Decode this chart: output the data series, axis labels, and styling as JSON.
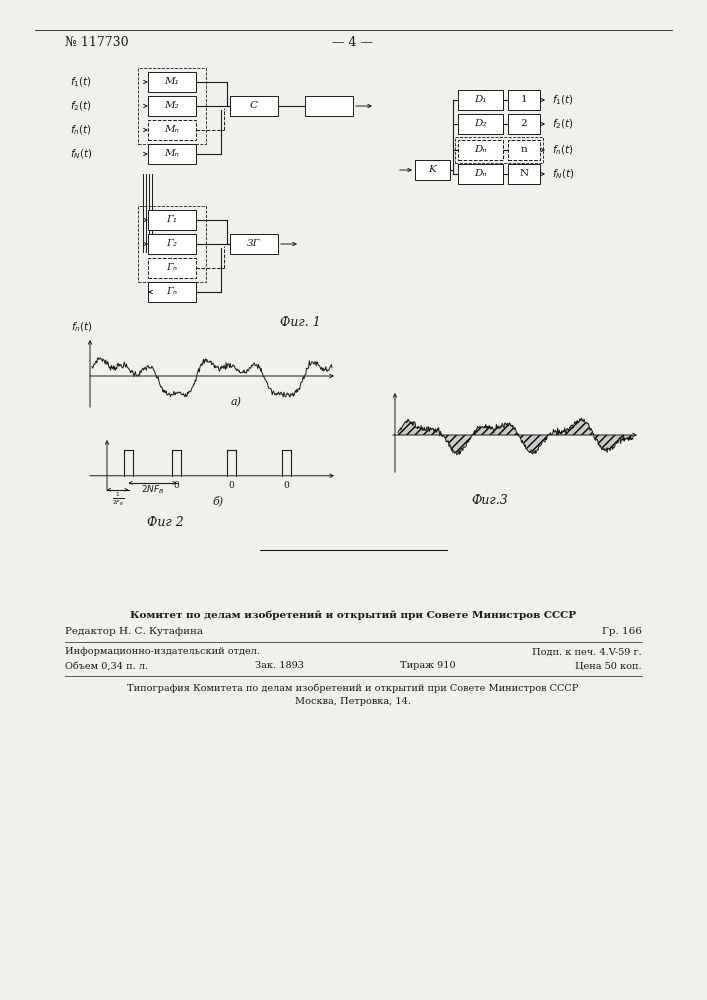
{
  "page_number": "— 4 —",
  "patent_number": "№ 117730",
  "fig1_label": "Фиг. 1",
  "fig2_label": "Фиг 2",
  "fig3_label": "Фиг.3",
  "bottom_text_line1": "Комитет по делам изобретений и открытий при Совете Министров СССР",
  "bottom_text_line2": "Редактор Н. С. Кутафина",
  "bottom_text_line3": "Гр. 166",
  "bottom_text_line4": "Информационно-издательский отдел.",
  "bottom_text_line5": "Подп. к печ. 4.V-59 г.",
  "bottom_text_line6": "Объем 0,34 п. л.",
  "bottom_text_line7": "Зак. 1893",
  "bottom_text_line8": "Тираж 910",
  "bottom_text_line9": "Цена 50 коп.",
  "bottom_text_line10": "Типография Комитета по делам изобретений и открытий при Совете Министров СССР",
  "bottom_text_line11": "Москва, Петровка, 14.",
  "background_color": "#f2f0eb",
  "line_color": "#1a1a1a",
  "box_color": "#ffffff"
}
